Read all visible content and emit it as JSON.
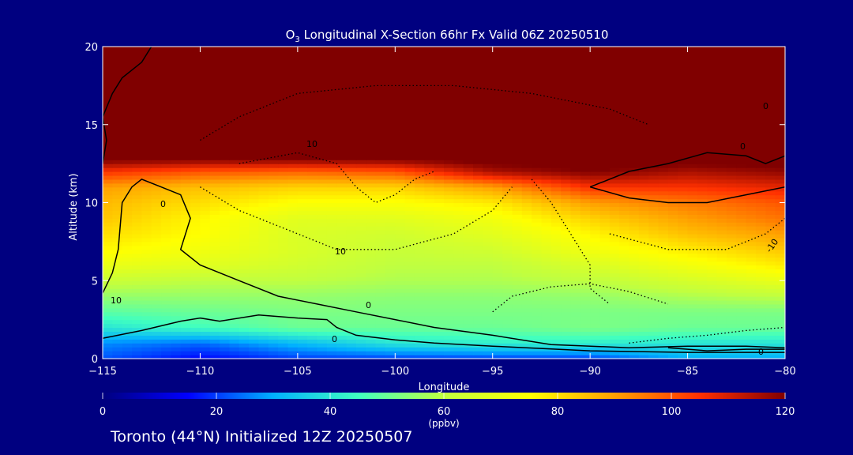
{
  "chart_data": {
    "type": "heatmap",
    "title": "O3 Longitudinal X-Section 66hr  Fx Valid 06Z 20250510",
    "title_parts": {
      "species": "O",
      "subscript": "3",
      "rest": " Longitudinal X-Section 66hr  Fx Valid 06Z 20250510"
    },
    "xlabel": "Longitude",
    "ylabel": "Altitude (km)",
    "xlim": [
      -115,
      -80
    ],
    "ylim": [
      0,
      20
    ],
    "x_ticks": [
      -115,
      -110,
      -105,
      -100,
      -95,
      -90,
      -85,
      -80
    ],
    "x_tick_labels": [
      "−115",
      "−110",
      "−105",
      "−100",
      "−95",
      "−90",
      "−85",
      "−80"
    ],
    "y_ticks": [
      0,
      5,
      10,
      15,
      20
    ],
    "y_tick_labels": [
      "0",
      "5",
      "10",
      "15",
      "20"
    ],
    "colorbar": {
      "min": 0,
      "max": 120,
      "ticks": [
        0,
        20,
        40,
        60,
        80,
        100,
        120
      ],
      "tick_labels": [
        "0",
        "20",
        "40",
        "60",
        "80",
        "100",
        "120"
      ],
      "unit_label": "(ppbv)",
      "colors": [
        "#00007f",
        "#0000ff",
        "#00b0ff",
        "#40ffc0",
        "#c0ff40",
        "#ffff00",
        "#ffa000",
        "#ff3000",
        "#800000"
      ]
    },
    "field_ppbv": {
      "longitude": [
        -115,
        -110,
        -105,
        -100,
        -95,
        -90,
        -85,
        -80
      ],
      "altitude_km": [
        0,
        1,
        2,
        3,
        4,
        5,
        6,
        7,
        8,
        9,
        10,
        11,
        12,
        13,
        20
      ],
      "values": [
        [
          22,
          15,
          20,
          20,
          20,
          20,
          30,
          30
        ],
        [
          27,
          24,
          32,
          40,
          42,
          42,
          40,
          40
        ],
        [
          40,
          45,
          50,
          50,
          50,
          52,
          50,
          50
        ],
        [
          48,
          50,
          52,
          52,
          52,
          52,
          52,
          52
        ],
        [
          55,
          55,
          55,
          54,
          54,
          55,
          58,
          60
        ],
        [
          62,
          60,
          60,
          58,
          58,
          60,
          65,
          70
        ],
        [
          70,
          68,
          64,
          60,
          60,
          66,
          72,
          78
        ],
        [
          76,
          72,
          66,
          62,
          64,
          72,
          78,
          84
        ],
        [
          80,
          75,
          66,
          64,
          68,
          76,
          85,
          90
        ],
        [
          84,
          76,
          68,
          68,
          72,
          82,
          90,
          96
        ],
        [
          86,
          80,
          74,
          74,
          78,
          90,
          95,
          100
        ],
        [
          90,
          85,
          82,
          82,
          90,
          105,
          105,
          108
        ],
        [
          105,
          100,
          98,
          100,
          115,
          120,
          115,
          118
        ],
        [
          125,
          125,
          125,
          125,
          125,
          125,
          125,
          125
        ],
        [
          125,
          125,
          125,
          125,
          125,
          125,
          125,
          125
        ]
      ]
    },
    "contour_labels": [
      "0",
      "10",
      "-10"
    ],
    "contours": [
      {
        "style": "solid",
        "points": [
          [
            -115,
            4.2
          ],
          [
            -114.5,
            5.5
          ],
          [
            -114.2,
            7
          ],
          [
            -114,
            10
          ],
          [
            -113.5,
            11
          ],
          [
            -113,
            11.5
          ],
          [
            -112,
            11
          ],
          [
            -111,
            10.5
          ],
          [
            -110.5,
            9
          ],
          [
            -111,
            7
          ],
          [
            -110,
            6
          ],
          [
            -108,
            5
          ],
          [
            -106,
            4
          ],
          [
            -104,
            3.5
          ],
          [
            -102,
            3
          ],
          [
            -100,
            2.5
          ],
          [
            -98,
            2
          ],
          [
            -95,
            1.5
          ],
          [
            -92,
            0.9
          ],
          [
            -88,
            0.7
          ],
          [
            -85,
            0.8
          ],
          [
            -82,
            0.8
          ],
          [
            -80,
            0.7
          ]
        ]
      },
      {
        "style": "solid",
        "points": [
          [
            -115,
            1.3
          ],
          [
            -113,
            1.8
          ],
          [
            -111,
            2.4
          ],
          [
            -110,
            2.6
          ],
          [
            -109,
            2.4
          ],
          [
            -107,
            2.8
          ],
          [
            -105,
            2.6
          ],
          [
            -103.5,
            2.5
          ],
          [
            -103,
            2.0
          ],
          [
            -102,
            1.5
          ],
          [
            -100,
            1.2
          ],
          [
            -98,
            1.0
          ],
          [
            -95,
            0.8
          ],
          [
            -90,
            0.5
          ],
          [
            -85,
            0.4
          ],
          [
            -80,
            0.4
          ]
        ]
      },
      {
        "style": "solid",
        "points": [
          [
            -115,
            12.5
          ],
          [
            -114.8,
            14
          ],
          [
            -115,
            15.5
          ],
          [
            -114.5,
            17
          ],
          [
            -114,
            18
          ],
          [
            -113,
            19
          ],
          [
            -112.5,
            20
          ]
        ]
      },
      {
        "style": "solid",
        "points": [
          [
            -90,
            11
          ],
          [
            -88,
            12
          ],
          [
            -86,
            12.5
          ],
          [
            -84,
            13.2
          ],
          [
            -82,
            13
          ],
          [
            -81,
            12.5
          ],
          [
            -80,
            13
          ]
        ]
      },
      {
        "style": "solid",
        "points": [
          [
            -90,
            11
          ],
          [
            -88,
            10.3
          ],
          [
            -86,
            10
          ],
          [
            -84,
            10
          ],
          [
            -82,
            10.5
          ],
          [
            -80,
            11
          ]
        ]
      },
      {
        "style": "solid",
        "points": [
          [
            -86,
            0.7
          ],
          [
            -84,
            0.5
          ],
          [
            -82,
            0.6
          ],
          [
            -80,
            0.6
          ]
        ]
      },
      {
        "style": "dotted",
        "points": [
          [
            -110,
            14
          ],
          [
            -108,
            15.5
          ],
          [
            -105,
            17
          ],
          [
            -101,
            17.5
          ],
          [
            -97,
            17.5
          ],
          [
            -93,
            17
          ],
          [
            -89,
            16
          ],
          [
            -87,
            15
          ]
        ]
      },
      {
        "style": "dotted",
        "points": [
          [
            -110,
            11
          ],
          [
            -108,
            9.5
          ],
          [
            -105,
            8
          ],
          [
            -103,
            7
          ],
          [
            -100,
            7
          ],
          [
            -97,
            8
          ],
          [
            -95,
            9.5
          ],
          [
            -94,
            11
          ]
        ]
      },
      {
        "style": "dotted",
        "points": [
          [
            -108,
            12.5
          ],
          [
            -105,
            13.2
          ],
          [
            -103,
            12.5
          ],
          [
            -102,
            11
          ],
          [
            -101,
            10
          ],
          [
            -100,
            10.5
          ],
          [
            -99,
            11.5
          ],
          [
            -98,
            12
          ]
        ]
      },
      {
        "style": "dotted",
        "points": [
          [
            -93,
            11.5
          ],
          [
            -92,
            10
          ],
          [
            -91,
            8
          ],
          [
            -90,
            6
          ],
          [
            -90,
            4.5
          ],
          [
            -89,
            3.5
          ]
        ]
      },
      {
        "style": "dotted",
        "points": [
          [
            -95,
            3
          ],
          [
            -94,
            4
          ],
          [
            -92,
            4.6
          ],
          [
            -90,
            4.8
          ],
          [
            -88,
            4.3
          ],
          [
            -86,
            3.5
          ]
        ]
      },
      {
        "style": "dotted",
        "points": [
          [
            -88,
            1
          ],
          [
            -86,
            1.3
          ],
          [
            -84,
            1.5
          ],
          [
            -82,
            1.8
          ],
          [
            -80,
            2
          ]
        ]
      },
      {
        "style": "dotted",
        "points": [
          [
            -89,
            8
          ],
          [
            -86,
            7
          ],
          [
            -83,
            7
          ],
          [
            -81,
            8
          ],
          [
            -80,
            9
          ]
        ]
      }
    ]
  },
  "footer": {
    "text": "Toronto (44°N) Initialized 12Z 20250507"
  }
}
